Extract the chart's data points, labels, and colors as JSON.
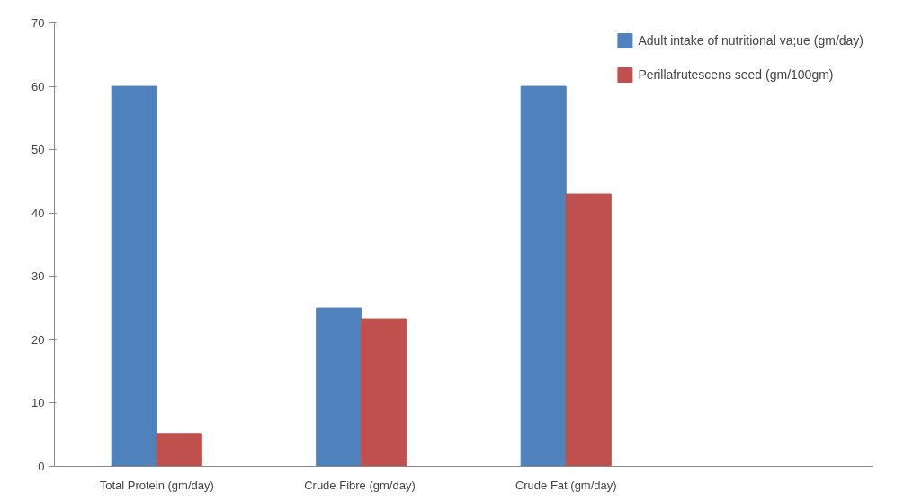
{
  "chart_data": {
    "type": "bar",
    "categories": [
      "Total Protein (gm/day)",
      "Crude Fibre  (gm/day)",
      "Crude Fat (gm/day)",
      null
    ],
    "series": [
      {
        "name": "Adult intake of nutritional va;ue (gm/day)",
        "color": "#4f81bd",
        "values": [
          60,
          25,
          60,
          null
        ]
      },
      {
        "name": "Perillafrutescens seed (gm/100gm)",
        "color": "#c0504d",
        "values": [
          5.2,
          23.3,
          43,
          null
        ]
      }
    ],
    "ylim": [
      0,
      70
    ],
    "yticks": [
      0,
      10,
      20,
      30,
      40,
      50,
      60,
      70
    ],
    "grid": false,
    "legend": "top right"
  }
}
